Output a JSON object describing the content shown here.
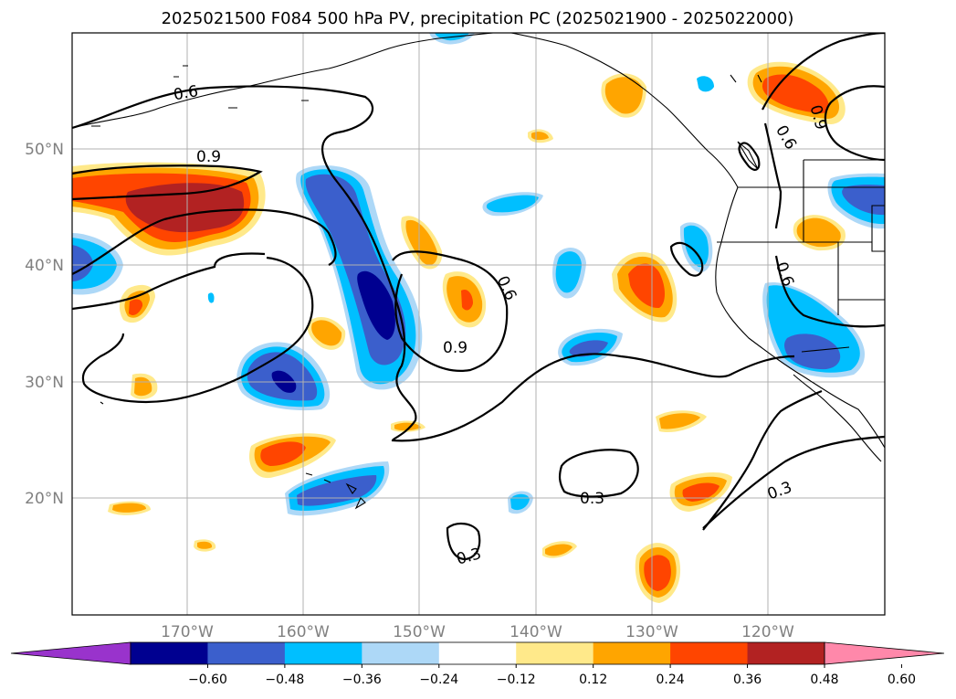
{
  "title": "2025021500 F084 500 hPa PV, precipitation PC (2025021900 - 2025022000)",
  "latitude_labels": [
    "50°N",
    "40°N",
    "30°N",
    "20°N"
  ],
  "longitude_labels": [
    "170°W",
    "160°W",
    "150°W",
    "140°W",
    "130°W",
    "120°W"
  ],
  "pv_contour_labels": [
    "0.6",
    "0.9",
    "0.6",
    "0.9",
    "0.6",
    "0.9",
    "0.6",
    "0.3",
    "0.3",
    "0.3"
  ],
  "colorbar": {
    "tick_labels": [
      "−0.60",
      "−0.48",
      "−0.36",
      "−0.24",
      "−0.12",
      "0.12",
      "0.24",
      "0.36",
      "0.48",
      "0.60"
    ],
    "colors": [
      "#9933cc",
      "#000090",
      "#3b5fcc",
      "#00bfff",
      "#add8f7",
      "#ffffff",
      "#ffe98a",
      "#ffa500",
      "#ff4500",
      "#b22222",
      "#ff88aa"
    ]
  },
  "icons": [
    "colorbar-extend-low-arrow",
    "colorbar-extend-high-arrow"
  ]
}
